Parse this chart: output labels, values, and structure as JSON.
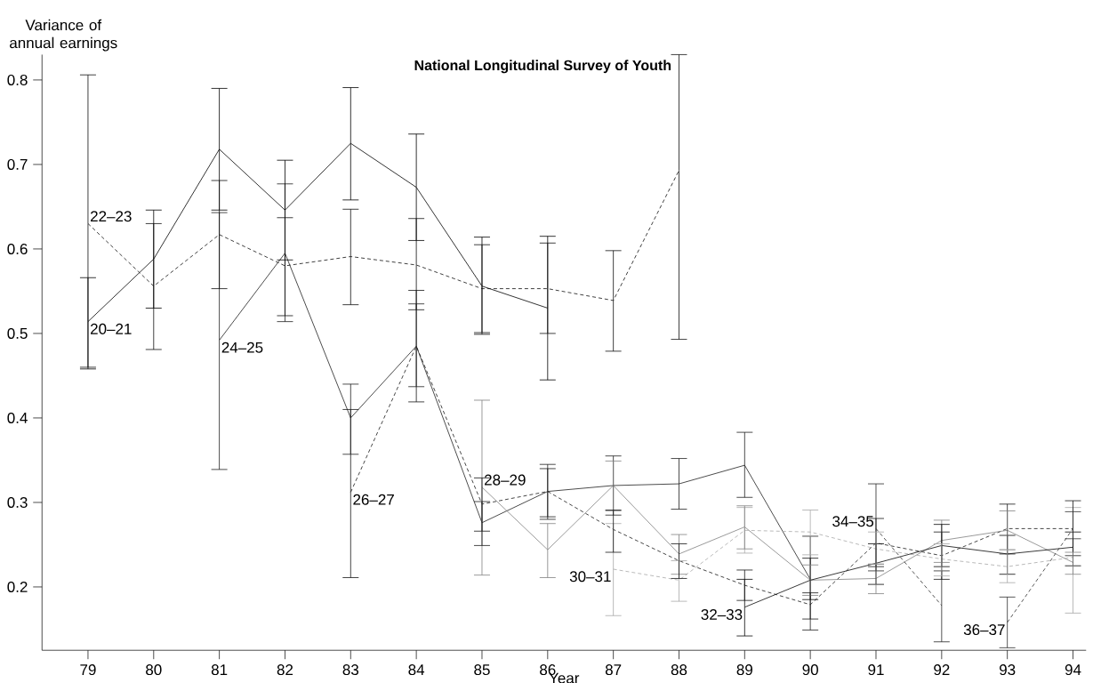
{
  "chart_data": {
    "type": "line",
    "title": "National Longitudinal Survey of Youth",
    "xlabel": "Year",
    "ylabel": "Variance of annual earnings",
    "xlim": [
      78.3,
      94.2
    ],
    "xticks": [
      79,
      80,
      81,
      82,
      83,
      84,
      85,
      86,
      87,
      88,
      89,
      90,
      91,
      92,
      93,
      94
    ],
    "ylim": [
      0.125,
      0.83
    ],
    "yticks": [
      0.2,
      0.3,
      0.4,
      0.5,
      0.6,
      0.7,
      0.8
    ],
    "marker": "none",
    "series": [
      {
        "name": "20–21",
        "color": "#000000",
        "line_style": "solid",
        "x": [
          79,
          80,
          81,
          82,
          83,
          84,
          85,
          86
        ],
        "values": [
          0.514,
          0.588,
          0.718,
          0.646,
          0.725,
          0.673,
          0.556,
          0.53
        ],
        "errors": [
          [
            0.458,
            0.566
          ],
          [
            0.53,
            0.646
          ],
          [
            0.646,
            0.79
          ],
          [
            0.587,
            0.705
          ],
          [
            0.658,
            0.791
          ],
          [
            0.61,
            0.736
          ],
          [
            0.499,
            0.614
          ],
          [
            0.445,
            0.615
          ]
        ]
      },
      {
        "name": "22–23",
        "color": "#101010",
        "line_style": "dashed",
        "x": [
          79,
          80,
          81,
          82,
          83,
          84,
          85,
          86,
          87,
          88
        ],
        "values": [
          0.63,
          0.556,
          0.617,
          0.58,
          0.591,
          0.581,
          0.553,
          0.553,
          0.539,
          0.693
        ],
        "errors": [
          [
            0.46,
            0.806
          ],
          [
            0.481,
            0.63
          ],
          [
            0.553,
            0.681
          ],
          [
            0.521,
            0.637
          ],
          [
            0.534,
            0.647
          ],
          [
            0.528,
            0.636
          ],
          [
            0.501,
            0.605
          ],
          [
            0.5,
            0.607
          ],
          [
            0.479,
            0.598
          ],
          [
            0.493,
            0.83
          ]
        ]
      },
      {
        "name": "24–25",
        "color": "#202020",
        "line_style": "solid",
        "x": [
          81,
          82,
          83,
          84,
          85,
          86,
          87,
          88,
          89,
          90
        ],
        "values": [
          0.492,
          0.595,
          0.4,
          0.485,
          0.276,
          0.313,
          0.32,
          0.322,
          0.344,
          0.209
        ],
        "errors": [
          [
            0.339,
            0.643
          ],
          [
            0.514,
            0.677
          ],
          [
            0.357,
            0.44
          ],
          [
            0.437,
            0.535
          ],
          [
            0.249,
            0.301
          ],
          [
            0.28,
            0.345
          ],
          [
            0.285,
            0.355
          ],
          [
            0.292,
            0.352
          ],
          [
            0.306,
            0.383
          ],
          [
            0.149,
            0.26
          ]
        ]
      },
      {
        "name": "26–27",
        "color": "#181818",
        "line_style": "dashed",
        "x": [
          83,
          84,
          85,
          86,
          87,
          88,
          89,
          90,
          91,
          92,
          93,
          94
        ],
        "values": [
          0.312,
          0.485,
          0.298,
          0.313,
          0.268,
          0.231,
          0.202,
          0.179,
          0.252,
          0.237,
          0.269,
          0.269
        ],
        "errors": [
          [
            0.211,
            0.41
          ],
          [
            0.419,
            0.551
          ],
          [
            0.266,
            0.329
          ],
          [
            0.283,
            0.34
          ],
          [
            0.241,
            0.291
          ],
          [
            0.21,
            0.251
          ],
          [
            0.184,
            0.22
          ],
          [
            0.162,
            0.193
          ],
          [
            0.224,
            0.281
          ],
          [
            0.209,
            0.265
          ],
          [
            0.239,
            0.298
          ],
          [
            0.237,
            0.302
          ]
        ]
      },
      {
        "name": "28–29",
        "color": "#808080",
        "line_style": "solid",
        "x": [
          85,
          86,
          87,
          88,
          89,
          90,
          91,
          92,
          93,
          94
        ],
        "values": [
          0.318,
          0.244,
          0.32,
          0.239,
          0.271,
          0.208,
          0.21,
          0.255,
          0.267,
          0.229
        ],
        "errors": [
          [
            0.214,
            0.421
          ],
          [
            0.211,
            0.275
          ],
          [
            0.29,
            0.349
          ],
          [
            0.215,
            0.262
          ],
          [
            0.245,
            0.296
          ],
          [
            0.19,
            0.226
          ],
          [
            0.192,
            0.227
          ],
          [
            0.229,
            0.279
          ],
          [
            0.244,
            0.29
          ],
          [
            0.215,
            0.241
          ]
        ]
      },
      {
        "name": "30–31",
        "color": "#a8a8a8",
        "line_style": "dashed",
        "x": [
          87,
          88,
          89,
          90,
          91,
          92,
          93,
          94
        ],
        "values": [
          0.221,
          0.208,
          0.267,
          0.265,
          0.245,
          0.233,
          0.224,
          0.235
        ],
        "errors": [
          [
            0.166,
            0.275
          ],
          [
            0.183,
            0.231
          ],
          [
            0.24,
            0.294
          ],
          [
            0.238,
            0.291
          ],
          [
            0.227,
            0.265
          ],
          [
            0.213,
            0.251
          ],
          [
            0.205,
            0.244
          ],
          [
            0.169,
            0.294
          ]
        ]
      },
      {
        "name": "32–33",
        "color": "#080808",
        "line_style": "solid",
        "x": [
          89,
          90,
          91,
          92,
          93,
          94
        ],
        "values": [
          0.176,
          0.208,
          0.228,
          0.249,
          0.239,
          0.247
        ],
        "errors": [
          [
            0.142,
            0.209
          ],
          [
            0.185,
            0.234
          ],
          [
            0.203,
            0.251
          ],
          [
            0.224,
            0.274
          ],
          [
            0.215,
            0.261
          ],
          [
            0.225,
            0.265
          ]
        ]
      },
      {
        "name": "34–35",
        "color": "#282828",
        "line_style": "dashed",
        "x": [
          91,
          92
        ],
        "values": [
          0.269,
          0.178
        ],
        "errors": [
          [
            0.219,
            0.322
          ],
          [
            0.135,
            0.219
          ]
        ]
      },
      {
        "name": "36–37",
        "color": "#303030",
        "line_style": "dashed",
        "x": [
          93,
          94
        ],
        "values": [
          0.158,
          0.269
        ],
        "errors": [
          [
            0.128,
            0.188
          ],
          [
            0.257,
            0.289
          ]
        ]
      }
    ]
  }
}
